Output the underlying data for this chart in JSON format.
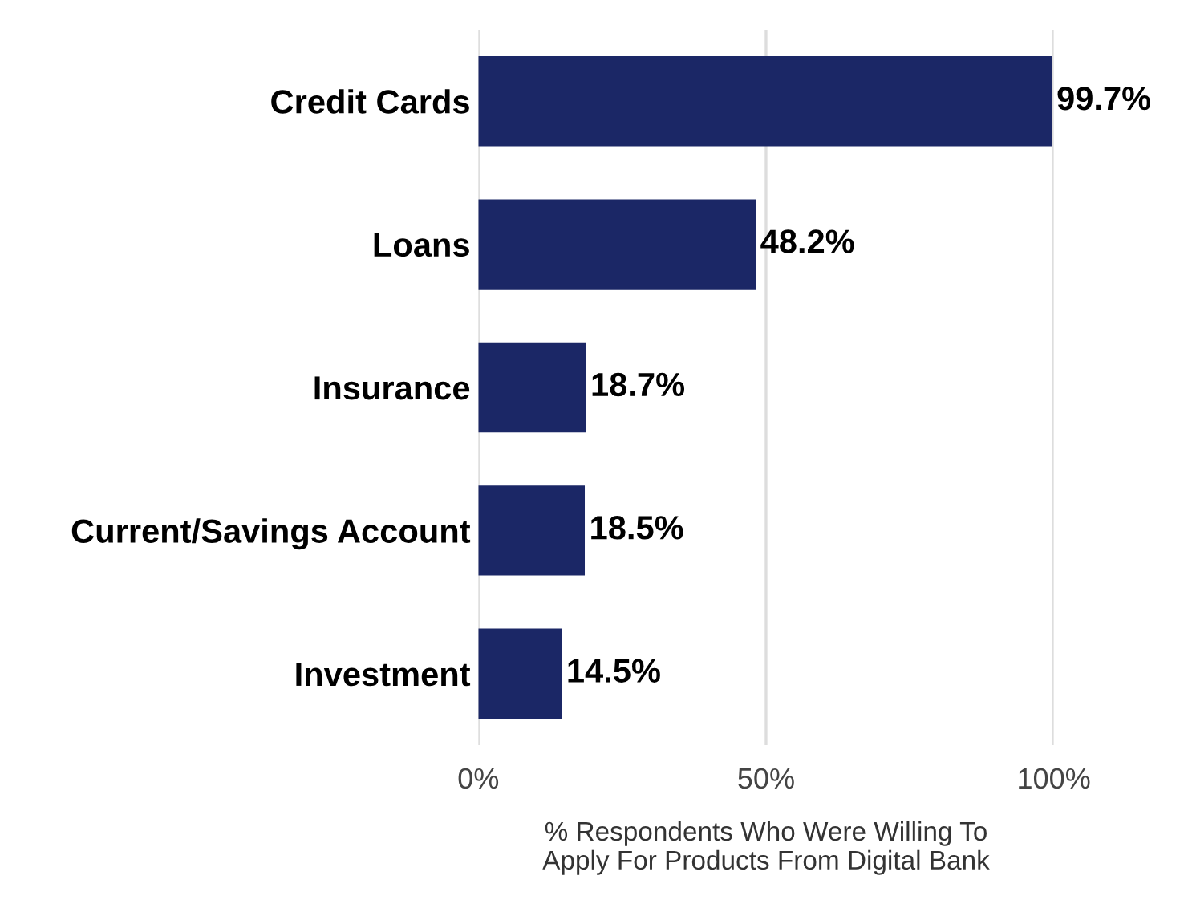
{
  "chart_data": {
    "type": "bar",
    "orientation": "horizontal",
    "categories": [
      "Credit Cards",
      "Loans",
      "Insurance",
      "Current/Savings Account",
      "Investment"
    ],
    "values": [
      99.7,
      48.2,
      18.7,
      18.5,
      14.5
    ],
    "value_labels": [
      "99.7%",
      "48.2%",
      "18.7%",
      "18.5%",
      "14.5%"
    ],
    "color": "#1b2766",
    "xlabel": "% Respondents Who Were Willing To\nApply For Products From Digital Bank",
    "xlim": [
      0,
      100
    ],
    "xticks": [
      {
        "value": 0,
        "label": "0%"
      },
      {
        "value": 50,
        "label": "50%"
      },
      {
        "value": 100,
        "label": "100%"
      }
    ],
    "grid": "x",
    "legend": false
  }
}
